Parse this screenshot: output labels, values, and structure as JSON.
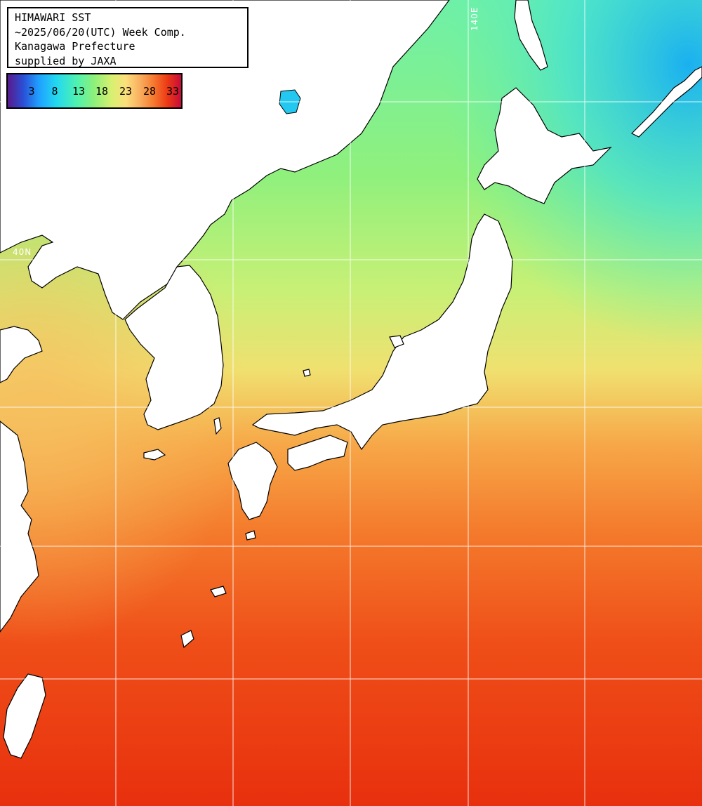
{
  "title": {
    "lines": [
      "HIMAWARI SST",
      "~2025/06/20(UTC) Week Comp.",
      "Kanagawa Prefecture",
      "supplied by JAXA"
    ]
  },
  "legend": {
    "labels": [
      "3",
      "8",
      "13",
      "18",
      "23",
      "28",
      "33"
    ],
    "colors": [
      "#5a1a8c",
      "#2a4fd6",
      "#1fa0ff",
      "#22d8f0",
      "#50f2b0",
      "#8ef07a",
      "#d8f070",
      "#fbe07c",
      "#f9b060",
      "#f67a30",
      "#ec3a14",
      "#c80a3a"
    ]
  },
  "grid": {
    "lon_label": "140E",
    "lat_label": "40N"
  },
  "palette": {
    "land": "#ffffff",
    "coast": "#000000",
    "grid": "#ffffff",
    "cold": "#22c8f0",
    "cool": "#7af0a0",
    "mild": "#d8f070",
    "warm": "#f7a040",
    "hot": "#ec3a14"
  }
}
